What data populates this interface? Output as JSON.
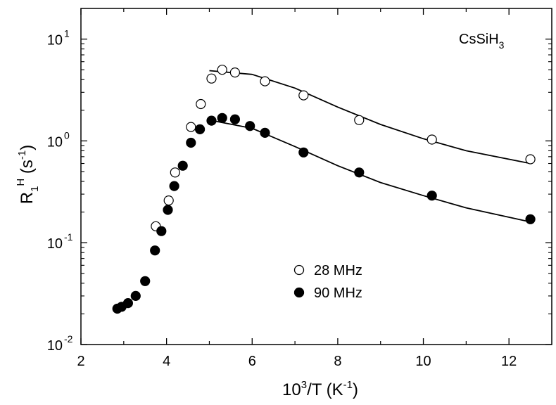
{
  "chart_data": {
    "type": "scatter",
    "annotation": {
      "base": "CsSiH",
      "sub": "3"
    },
    "xlabel": {
      "base": "10",
      "sup": "3",
      "rest": "/T  (K",
      "sup2": "-1",
      "end": ")"
    },
    "ylabel": {
      "base": "R",
      "sub": "1",
      "sup": "H",
      "rest": "  (s",
      "sup2": "-1",
      "end": ")"
    },
    "xlim": [
      2,
      13
    ],
    "ylim": [
      0.01,
      20
    ],
    "yscale": "log",
    "x_ticks": [
      2,
      4,
      6,
      8,
      10,
      12
    ],
    "x_tick_labels": [
      "2",
      "4",
      "6",
      "8",
      "10",
      "12"
    ],
    "y_ticks": [
      {
        "value": 0.01,
        "base": "10",
        "exp": "-2"
      },
      {
        "value": 0.1,
        "base": "10",
        "exp": "-1"
      },
      {
        "value": 1,
        "base": "10",
        "exp": "0"
      },
      {
        "value": 10,
        "base": "10",
        "exp": "1"
      }
    ],
    "legend_position": "center",
    "series": [
      {
        "name": "28 MHz",
        "marker": "open-circle",
        "points": [
          [
            3.75,
            0.145
          ],
          [
            4.05,
            0.26
          ],
          [
            4.2,
            0.49
          ],
          [
            4.57,
            1.37
          ],
          [
            4.8,
            2.3
          ],
          [
            5.05,
            4.1
          ],
          [
            5.3,
            5.0
          ],
          [
            5.6,
            4.7
          ],
          [
            6.3,
            3.85
          ],
          [
            7.2,
            2.8
          ],
          [
            8.5,
            1.6
          ],
          [
            10.2,
            1.03
          ],
          [
            12.5,
            0.66
          ]
        ],
        "fit": [
          [
            5.0,
            4.9
          ],
          [
            6.0,
            4.5
          ],
          [
            7.0,
            3.3
          ],
          [
            8.0,
            2.15
          ],
          [
            9.0,
            1.45
          ],
          [
            10.0,
            1.05
          ],
          [
            11.0,
            0.8
          ],
          [
            12.5,
            0.6
          ]
        ]
      },
      {
        "name": "90 MHz",
        "marker": "filled-circle",
        "points": [
          [
            2.85,
            0.0225
          ],
          [
            2.95,
            0.0235
          ],
          [
            3.1,
            0.0255
          ],
          [
            3.28,
            0.03
          ],
          [
            3.5,
            0.042
          ],
          [
            3.73,
            0.084
          ],
          [
            3.88,
            0.13
          ],
          [
            4.03,
            0.21
          ],
          [
            4.18,
            0.36
          ],
          [
            4.38,
            0.57
          ],
          [
            4.57,
            0.96
          ],
          [
            4.78,
            1.3
          ],
          [
            5.05,
            1.58
          ],
          [
            5.3,
            1.68
          ],
          [
            5.6,
            1.63
          ],
          [
            5.95,
            1.4
          ],
          [
            6.3,
            1.2
          ],
          [
            7.2,
            0.77
          ],
          [
            8.5,
            0.49
          ],
          [
            10.2,
            0.29
          ],
          [
            12.5,
            0.17
          ]
        ],
        "fit": [
          [
            5.0,
            1.6
          ],
          [
            6.0,
            1.33
          ],
          [
            7.0,
            0.88
          ],
          [
            8.0,
            0.57
          ],
          [
            9.0,
            0.39
          ],
          [
            10.0,
            0.29
          ],
          [
            11.0,
            0.22
          ],
          [
            12.5,
            0.16
          ]
        ]
      }
    ]
  }
}
